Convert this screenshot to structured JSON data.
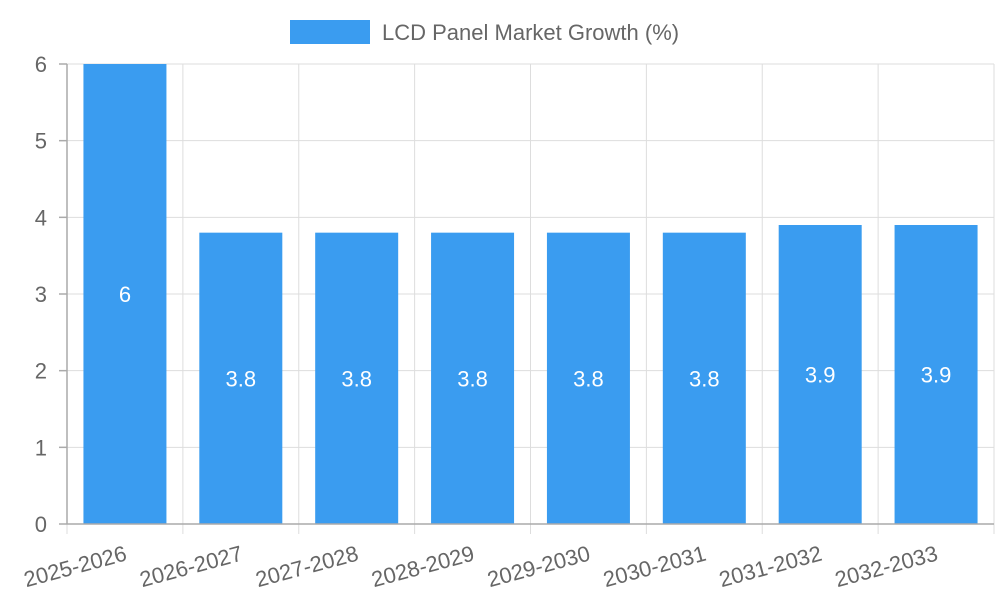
{
  "chart_data": {
    "type": "bar",
    "categories": [
      "2025-2026",
      "2026-2027",
      "2027-2028",
      "2028-2029",
      "2029-2030",
      "2030-2031",
      "2031-2032",
      "2032-2033"
    ],
    "series": [
      {
        "name": "LCD Panel Market Growth (%)",
        "values": [
          6,
          3.8,
          3.8,
          3.8,
          3.8,
          3.8,
          3.9,
          3.9
        ]
      }
    ],
    "data_labels": [
      "6",
      "3.8",
      "3.8",
      "3.8",
      "3.8",
      "3.8",
      "3.9",
      "3.9"
    ],
    "y_ticks": [
      "0",
      "1",
      "2",
      "3",
      "4",
      "5",
      "6"
    ],
    "ylim": [
      0,
      6
    ],
    "grid": true,
    "legend_position": "top-center",
    "colors": {
      "bar": "#3a9cf0",
      "grid": "#dddddd",
      "text": "#666666"
    }
  }
}
